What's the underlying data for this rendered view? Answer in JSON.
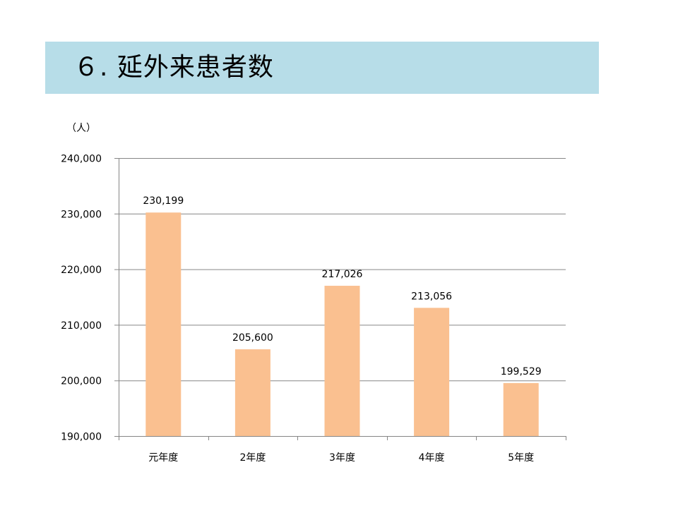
{
  "page": {
    "title": "６. 延外来患者数"
  },
  "chart_data": {
    "type": "bar",
    "title": "",
    "unit_label": "（人）",
    "categories": [
      "元年度",
      "2年度",
      "3年度",
      "4年度",
      "5年度"
    ],
    "values": [
      230199,
      205600,
      217026,
      213056,
      199529
    ],
    "data_labels": [
      "230,199",
      "205,600",
      "217,026",
      "213,056",
      "199,529"
    ],
    "y_ticks": [
      "190,000",
      "200,000",
      "210,000",
      "220,000",
      "230,000",
      "240,000"
    ],
    "ylim": [
      190000,
      240000
    ],
    "y_step": 10000,
    "grid": true,
    "legend": "none",
    "bar_color": "#fac090",
    "grid_color": "#868686",
    "title_band_color": "#b7dde8"
  }
}
